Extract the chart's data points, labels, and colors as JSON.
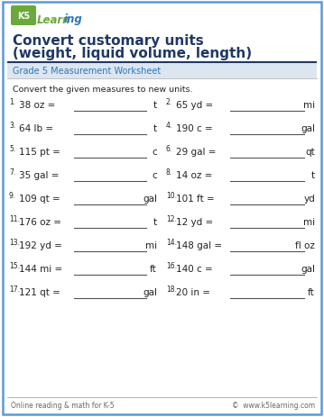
{
  "title_line1": "Convert customary units",
  "title_line2": "(weight, liquid volume, length)",
  "subtitle": "Grade 5 Measurement Worksheet",
  "instruction": "Convert the given measures to new units.",
  "problems": [
    {
      "num": "1.",
      "left": "38 oz =",
      "unit": "t",
      "col": 0
    },
    {
      "num": "2.",
      "left": "65 yd =",
      "unit": "mi",
      "col": 1
    },
    {
      "num": "3.",
      "left": "64 lb =",
      "unit": "t",
      "col": 0
    },
    {
      "num": "4.",
      "left": "190 c =",
      "unit": "gal",
      "col": 1
    },
    {
      "num": "5.",
      "left": "115 pt =",
      "unit": "c",
      "col": 0
    },
    {
      "num": "6.",
      "left": "29 gal =",
      "unit": "qt",
      "col": 1
    },
    {
      "num": "7.",
      "left": "35 gal =",
      "unit": "c",
      "col": 0
    },
    {
      "num": "8.",
      "left": "14 oz =",
      "unit": "t",
      "col": 1
    },
    {
      "num": "9.",
      "left": "109 qt =",
      "unit": "gal",
      "col": 0
    },
    {
      "num": "10.",
      "left": "101 ft =",
      "unit": "yd",
      "col": 1
    },
    {
      "num": "11.",
      "left": "176 oz =",
      "unit": "t",
      "col": 0
    },
    {
      "num": "12.",
      "left": "12 yd =",
      "unit": "mi",
      "col": 1
    },
    {
      "num": "13.",
      "left": "192 yd =",
      "unit": "mi",
      "col": 0
    },
    {
      "num": "14.",
      "left": "148 gal =",
      "unit": "fl oz",
      "col": 1
    },
    {
      "num": "15.",
      "left": "144 mi =",
      "unit": "ft",
      "col": 0
    },
    {
      "num": "16.",
      "left": "140 c =",
      "unit": "gal",
      "col": 1
    },
    {
      "num": "17.",
      "left": "121 qt =",
      "unit": "gal",
      "col": 0
    },
    {
      "num": "18.",
      "left": "20 in =",
      "unit": "ft",
      "col": 1
    }
  ],
  "footer_left": "Online reading & math for K-5",
  "footer_right": "©  www.k5learning.com",
  "border_color": "#5b9bd5",
  "title_color": "#1f3864",
  "subtitle_color": "#2e75b6",
  "text_color": "#222222",
  "footer_color": "#666666",
  "background_color": "#ffffff",
  "logo_green": "#6aaa3a",
  "logo_blue": "#2e75b6",
  "line_color": "#555555",
  "divider_color": "#1f3864",
  "subtitle_bg": "#dce6f1"
}
